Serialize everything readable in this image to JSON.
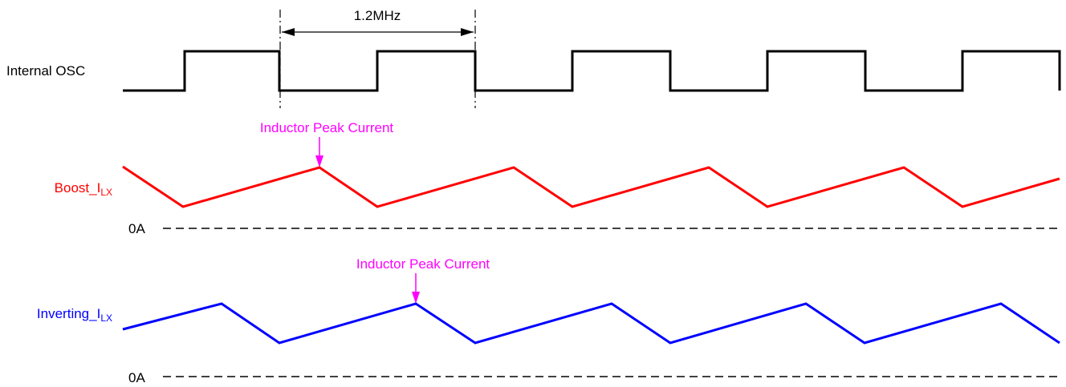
{
  "signals": {
    "osc": {
      "label": "Internal OSC"
    },
    "boost": {
      "label_main": "Boost_I",
      "label_sub": "LX",
      "zero_label": "0A"
    },
    "inverting": {
      "label_main": "Inverting_I",
      "label_sub": "LX",
      "zero_label": "0A"
    }
  },
  "annotations": {
    "frequency": "1.2MHz",
    "boost_peak": "Inductor Peak Current",
    "inverting_peak": "Inductor Peak Current"
  },
  "colors": {
    "osc": "#000000",
    "boost": "#ff0000",
    "inverting": "#0000ff",
    "annotation": "#ff00ff",
    "zero_line": "#000000"
  }
}
